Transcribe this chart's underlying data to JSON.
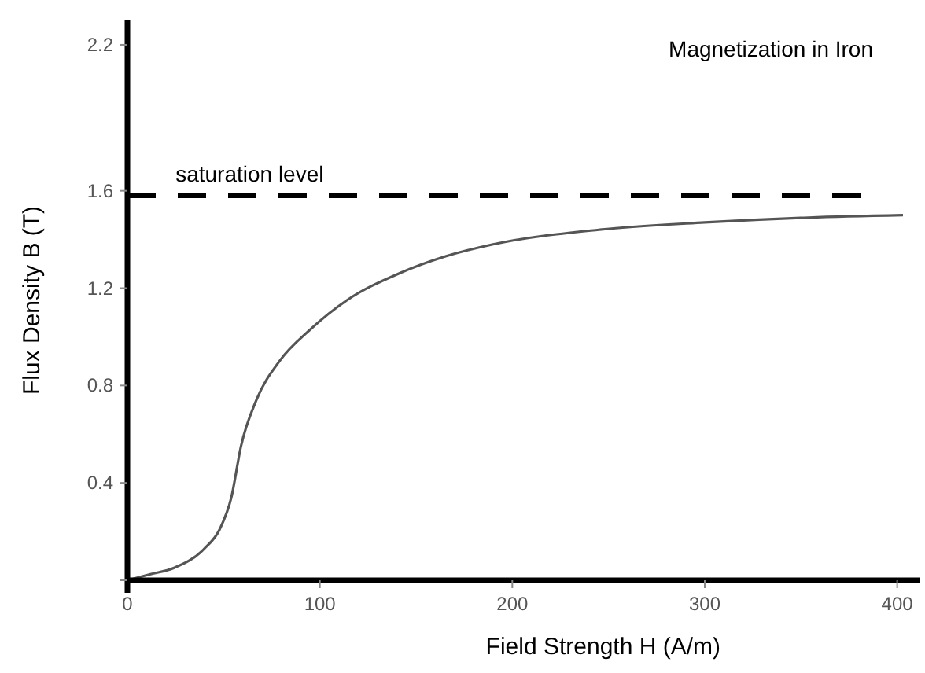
{
  "chart_data": {
    "type": "line",
    "title": "Magnetization in Iron",
    "xlabel": "Field Strength H (A/m)",
    "ylabel": "Flux Density B (T)",
    "x": [
      0,
      12,
      24,
      40,
      48,
      54,
      59,
      67,
      79,
      95,
      114,
      141,
      165,
      190,
      245,
      300,
      354,
      403
    ],
    "series": [
      {
        "color": "#555555",
        "values": [
          0,
          0.025,
          0.05,
          0.13,
          0.21,
          0.34,
          0.55,
          0.74,
          0.9,
          1.03,
          1.15,
          1.26,
          1.33,
          1.38,
          1.44,
          1.47,
          1.49,
          1.5
        ]
      }
    ],
    "xlim": [
      0,
      412
    ],
    "xticks": [
      0,
      100,
      200,
      300,
      400
    ],
    "ylim": [
      0,
      2.3
    ],
    "yticks": [
      {
        "value": 0,
        "label": null
      },
      0.4,
      0.8,
      1.2,
      1.6,
      2.2
    ],
    "ref_lines": [
      {
        "axis": "y",
        "value": 1.58,
        "label": "saturation level",
        "color": "#000000",
        "line_style": "dashed"
      }
    ],
    "grid": false,
    "marker": "none",
    "line_style": "solid"
  }
}
